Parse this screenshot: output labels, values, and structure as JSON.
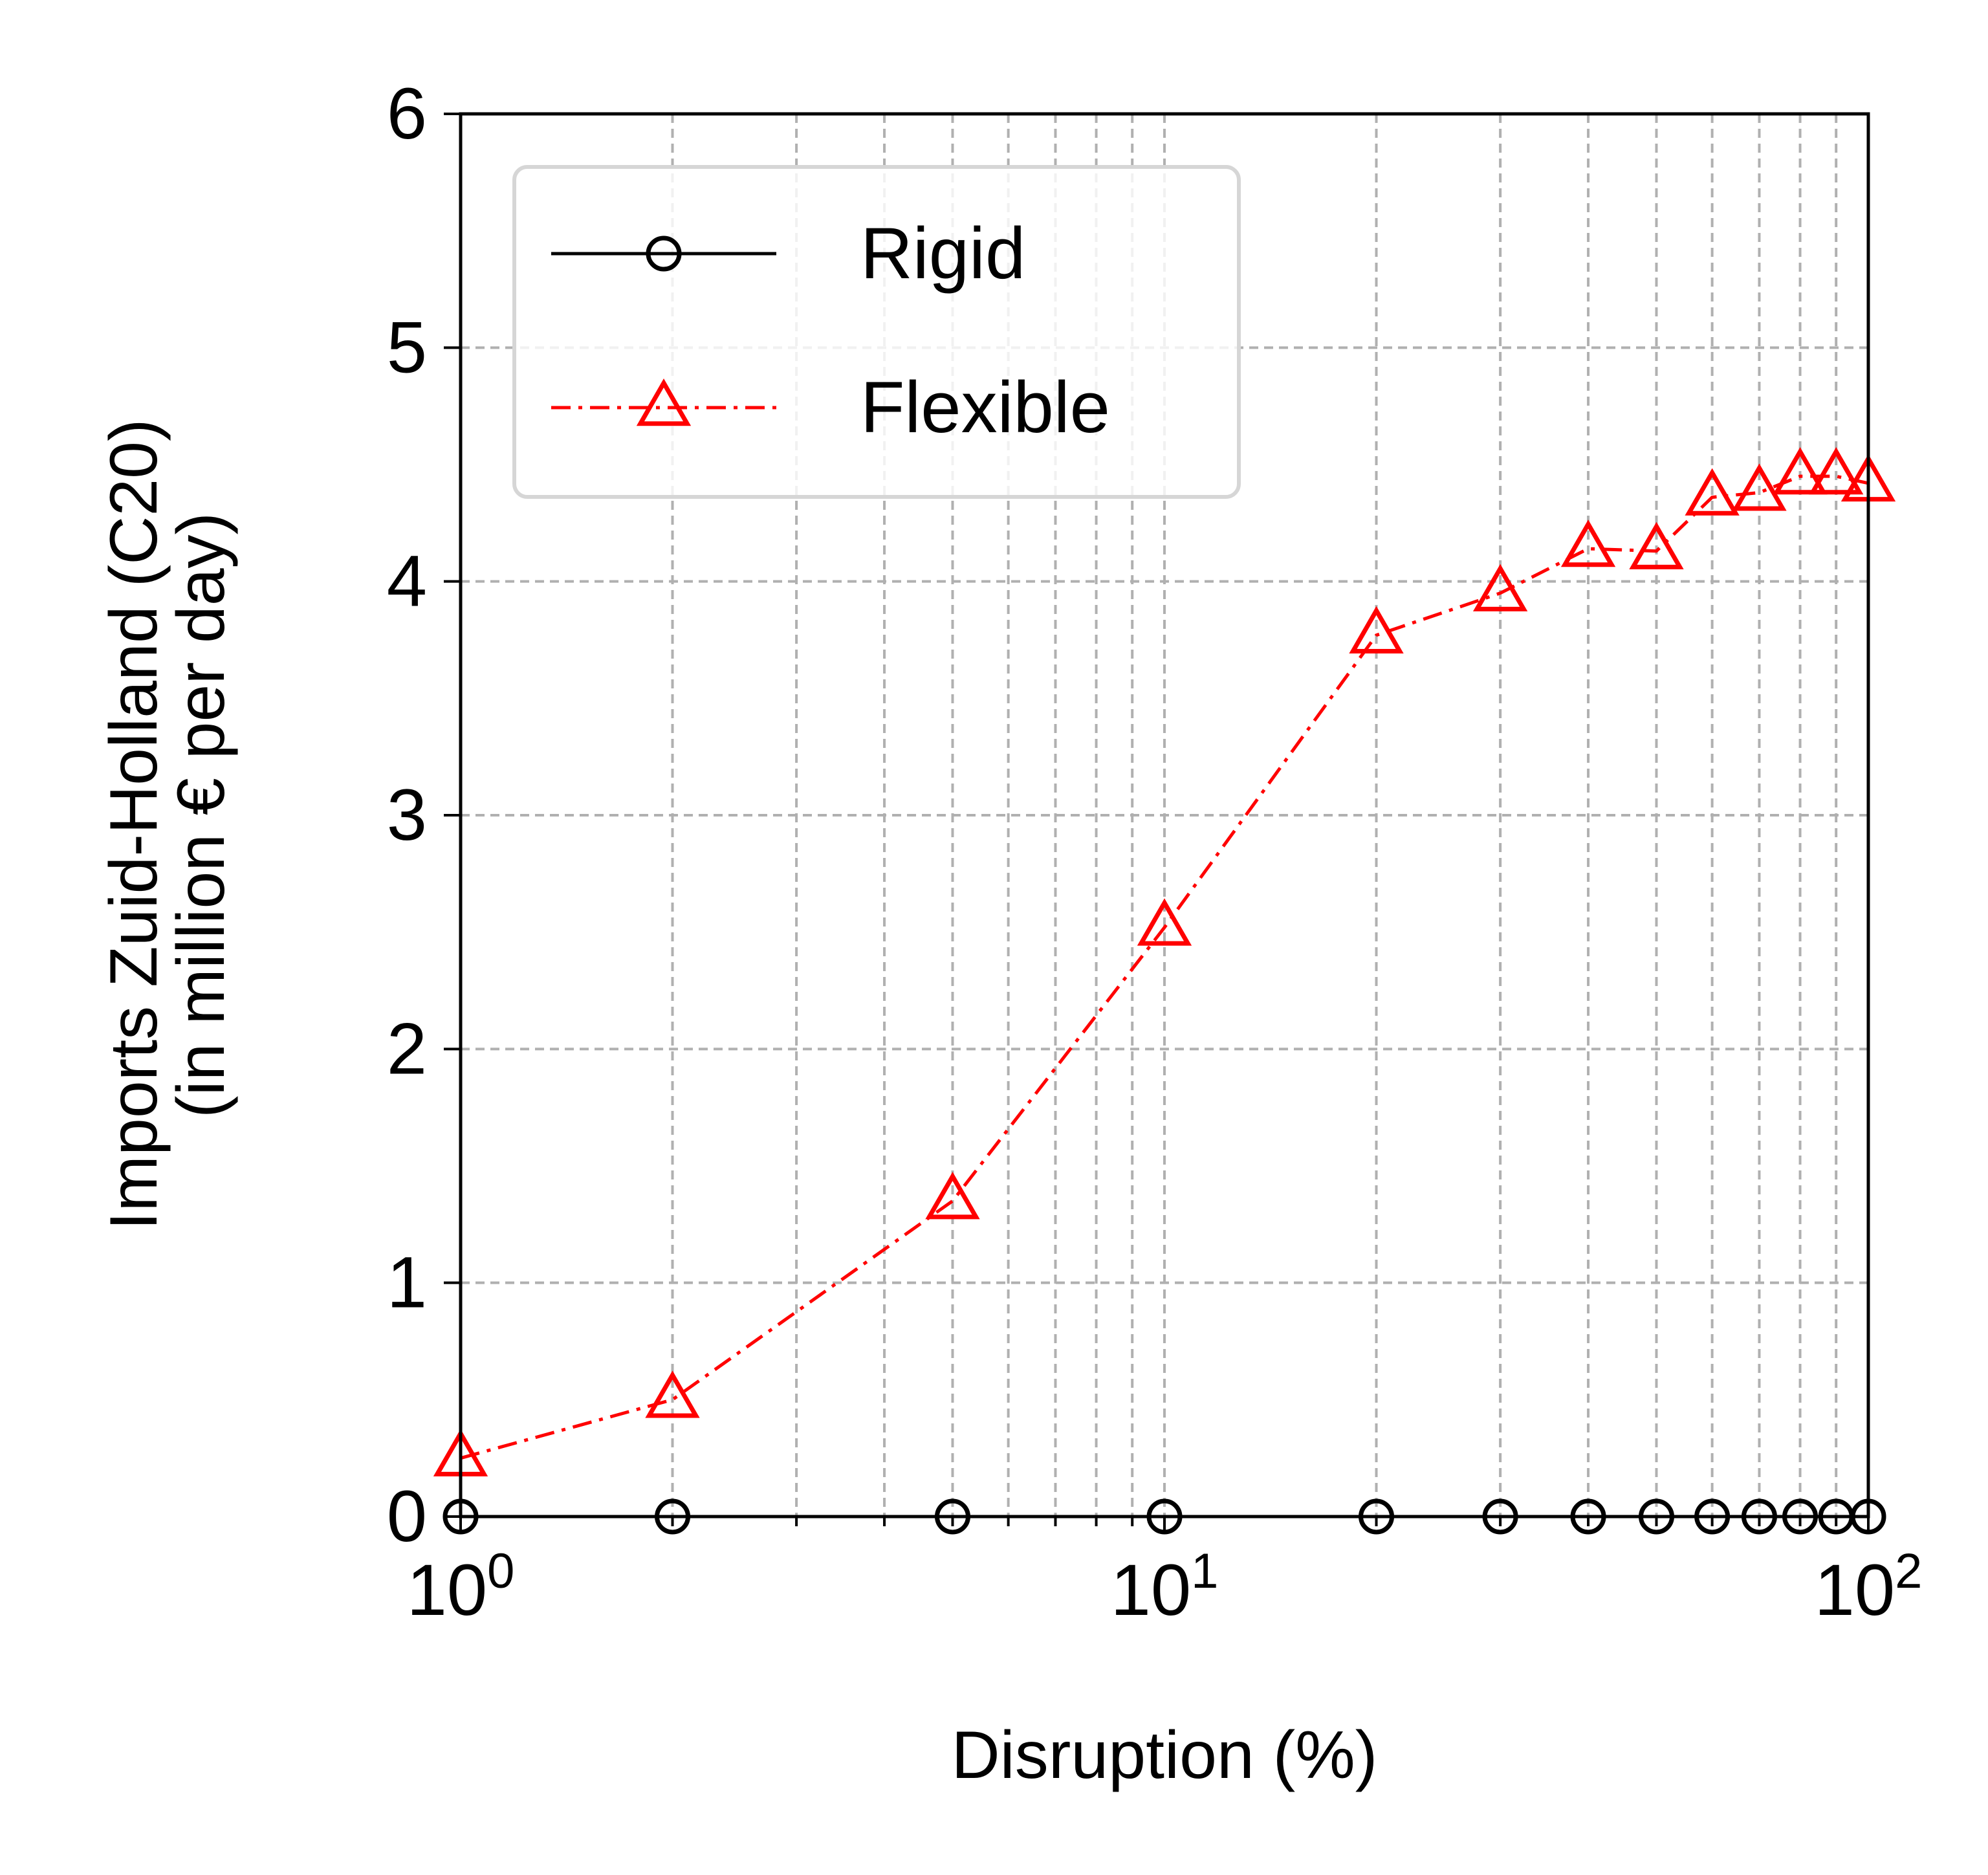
{
  "chart_data": {
    "type": "line",
    "title": "",
    "xlabel": "Disruption (%)",
    "ylabel_lines": [
      "Imports Zuid-Holland (C20)",
      "(in million € per day)"
    ],
    "x_scale": "log",
    "xlim": [
      1,
      100
    ],
    "ylim": [
      0,
      6
    ],
    "x_ticks": [
      {
        "value": 1,
        "base": "10",
        "exp": "0"
      },
      {
        "value": 10,
        "base": "10",
        "exp": "1"
      },
      {
        "value": 100,
        "base": "10",
        "exp": "2"
      }
    ],
    "y_ticks": [
      0,
      1,
      2,
      3,
      4,
      5,
      6
    ],
    "grid": true,
    "grid_style": "dashed",
    "legend_position": "top-left",
    "x": [
      1,
      2,
      5,
      10,
      20,
      30,
      40,
      50,
      60,
      70,
      80,
      90,
      100
    ],
    "series": [
      {
        "name": "Rigid",
        "color": "#000000",
        "marker": "circle",
        "line_style": "solid",
        "values": [
          0,
          0,
          0,
          0,
          0,
          0,
          0,
          0,
          0,
          0,
          0,
          0,
          0
        ]
      },
      {
        "name": "Flexible",
        "color": "#ff0000",
        "marker": "triangle",
        "line_style": "dashdot",
        "values": [
          0.25,
          0.5,
          1.35,
          2.52,
          3.77,
          3.95,
          4.14,
          4.13,
          4.36,
          4.38,
          4.45,
          4.45,
          4.42
        ]
      }
    ]
  }
}
